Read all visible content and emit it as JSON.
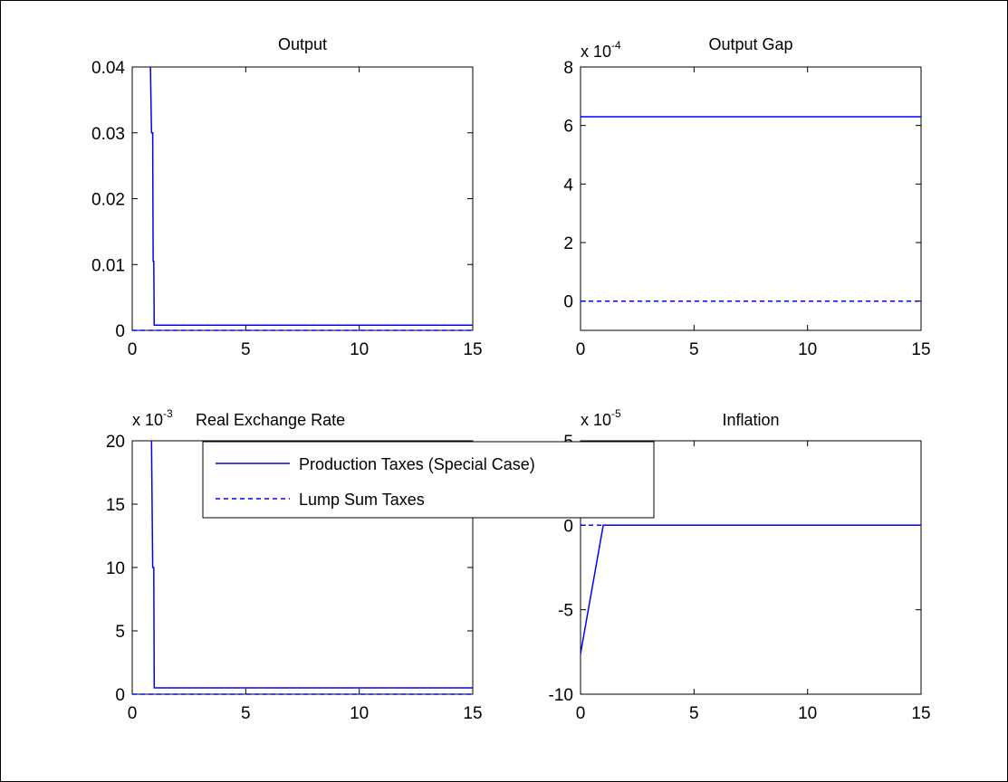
{
  "chart_data": [
    {
      "type": "line",
      "title": "Output",
      "xlabel": "",
      "ylabel": "",
      "xlim": [
        0,
        15
      ],
      "ylim": [
        0,
        0.04
      ],
      "xticks": [
        0,
        5,
        10,
        15
      ],
      "yticks": [
        0,
        0.01,
        0.02,
        0.03,
        0.04
      ],
      "ytick_labels": [
        "0",
        "0.01",
        "0.02",
        "0.03",
        "0.04"
      ],
      "exponent": "",
      "series": [
        {
          "key": "production",
          "style": "solid",
          "color": "#0000ff",
          "x": [
            0.8,
            0.85,
            0.9,
            0.92,
            0.95,
            0.97,
            1,
            15
          ],
          "y": [
            0.04,
            0.03,
            0.03,
            0.0105,
            0.0105,
            0.0008,
            0.0008,
            0.0008
          ]
        },
        {
          "key": "lump_sum",
          "style": "dashed",
          "color": "#0000ff",
          "x": [
            0,
            15
          ],
          "y": [
            0,
            0
          ]
        }
      ]
    },
    {
      "type": "line",
      "title": "Output Gap",
      "xlabel": "",
      "ylabel": "",
      "xlim": [
        0,
        15
      ],
      "ylim": [
        -1,
        8
      ],
      "xticks": [
        0,
        5,
        10,
        15
      ],
      "yticks": [
        0,
        2,
        4,
        6,
        8
      ],
      "ytick_labels": [
        "0",
        "2",
        "4",
        "6",
        "8"
      ],
      "exponent_base": "x 10",
      "exponent_power": "-4",
      "series": [
        {
          "key": "production",
          "style": "solid",
          "color": "#0000ff",
          "x": [
            0,
            15
          ],
          "y": [
            6.3,
            6.3
          ]
        },
        {
          "key": "lump_sum",
          "style": "dashed",
          "color": "#0000ff",
          "x": [
            0,
            15
          ],
          "y": [
            0,
            0
          ]
        }
      ]
    },
    {
      "type": "line",
      "title": "Real Exchange Rate",
      "xlabel": "",
      "ylabel": "",
      "xlim": [
        0,
        15
      ],
      "ylim": [
        0,
        20
      ],
      "xticks": [
        0,
        5,
        10,
        15
      ],
      "yticks": [
        0,
        5,
        10,
        15,
        20
      ],
      "ytick_labels": [
        "0",
        "5",
        "10",
        "15",
        "20"
      ],
      "exponent_base": "x 10",
      "exponent_power": "-3",
      "series": [
        {
          "key": "production",
          "style": "solid",
          "color": "#0000ff",
          "x": [
            0.85,
            0.9,
            0.92,
            0.95,
            0.97,
            1,
            15
          ],
          "y": [
            20,
            10,
            10,
            10,
            0.5,
            0.5,
            0.5
          ]
        },
        {
          "key": "lump_sum",
          "style": "dashed",
          "color": "#0000ff",
          "x": [
            0,
            15
          ],
          "y": [
            0,
            0
          ]
        }
      ]
    },
    {
      "type": "line",
      "title": "Inflation",
      "xlabel": "",
      "ylabel": "",
      "xlim": [
        0,
        15
      ],
      "ylim": [
        -10,
        5
      ],
      "xticks": [
        0,
        5,
        10,
        15
      ],
      "yticks": [
        -10,
        -5,
        0,
        5
      ],
      "ytick_labels": [
        "-10",
        "-5",
        "0",
        "5"
      ],
      "exponent_base": "x 10",
      "exponent_power": "-5",
      "series": [
        {
          "key": "production",
          "style": "solid",
          "color": "#0000ff",
          "x": [
            0,
            1,
            15
          ],
          "y": [
            -7.6,
            0,
            0
          ]
        },
        {
          "key": "lump_sum",
          "style": "dashed",
          "color": "#0000ff",
          "x": [
            0,
            1
          ],
          "y": [
            0,
            0
          ]
        }
      ]
    }
  ],
  "legend": {
    "placement": "center, overlapping Real Exchange Rate and Inflation panels",
    "entries": [
      {
        "label": "Production Taxes (Special Case)",
        "style": "solid",
        "color": "#0000ff"
      },
      {
        "label": "Lump Sum Taxes",
        "style": "dashed",
        "color": "#0000ff"
      }
    ]
  }
}
